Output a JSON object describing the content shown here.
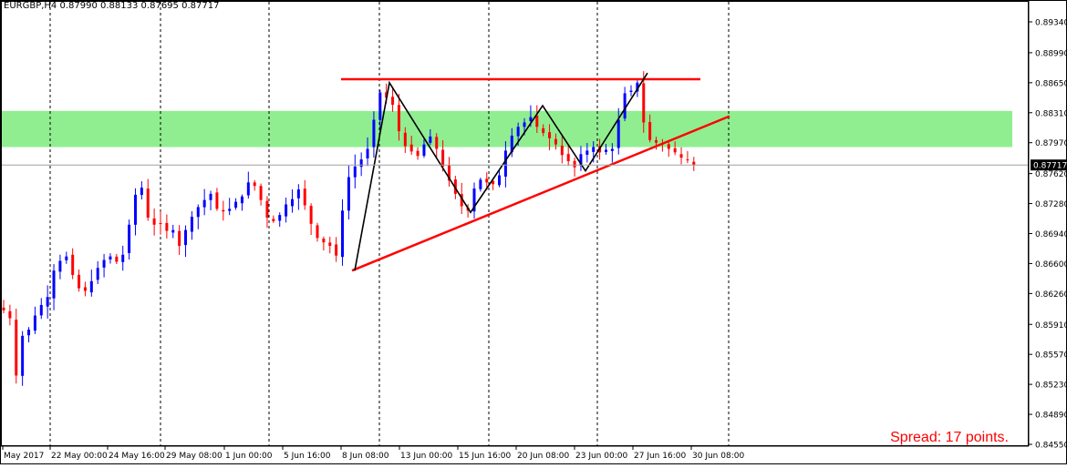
{
  "header": {
    "symbol": "EURGBP,H4",
    "ohlc": "0.87990 0.88133 0.87695 0.87717"
  },
  "spread_label": "Spread: 17 points.",
  "colors": {
    "bull": "#0000ff",
    "bear": "#ff0000",
    "zone": "#90ee90",
    "trendline": "#ff0000",
    "pattern": "#000000",
    "grid": "#000000",
    "price_tag_bg": "#000000"
  },
  "chart_data": {
    "type": "candlestick",
    "symbol": "EURGBP",
    "timeframe": "H4",
    "ylim": [
      0.8444,
      0.8952
    ],
    "y_ticks": [
      "0.89340",
      "0.88990",
      "0.88650",
      "0.88310",
      "0.87970",
      "0.87620",
      "0.87280",
      "0.86940",
      "0.86600",
      "0.86260",
      "0.85910",
      "0.85570",
      "0.85230",
      "0.84890",
      "0.84550"
    ],
    "x_ticks": [
      "May 2017",
      "22 May 00:00",
      "24 May 16:00",
      "29 May 08:00",
      "1 Jun 00:00",
      "5 Jun 16:00",
      "8 Jun 08:00",
      "13 Jun 00:00",
      "15 Jun 16:00",
      "20 Jun 08:00",
      "23 Jun 00:00",
      "27 Jun 16:00",
      "30 Jun 08:00"
    ],
    "current_price": "0.87717",
    "support_resistance_zone": [
      0.8792,
      0.8833
    ],
    "resistance_line": {
      "price": 0.8869
    },
    "trendline": {
      "from": 0.8652,
      "to": 0.8827
    },
    "pattern_points": [
      0.8652,
      0.8865,
      0.8718,
      0.8839,
      0.8765,
      0.8876
    ],
    "close_path": [
      0.8607,
      0.8598,
      0.8533,
      0.8578,
      0.8585,
      0.8601,
      0.8613,
      0.8622,
      0.8652,
      0.8663,
      0.8668,
      0.8647,
      0.8632,
      0.8629,
      0.864,
      0.8655,
      0.8664,
      0.8668,
      0.8662,
      0.867,
      0.8704,
      0.8738,
      0.8746,
      0.8712,
      0.8704,
      0.8705,
      0.8697,
      0.8698,
      0.868,
      0.8698,
      0.8713,
      0.8724,
      0.8732,
      0.8739,
      0.8722,
      0.8719,
      0.8722,
      0.873,
      0.8736,
      0.8752,
      0.8748,
      0.8732,
      0.8712,
      0.8708,
      0.8715,
      0.8727,
      0.8733,
      0.8744,
      0.8726,
      0.8705,
      0.8689,
      0.8684,
      0.868,
      0.8669,
      0.872,
      0.8758,
      0.877,
      0.8778,
      0.879,
      0.8823,
      0.8854,
      0.8848,
      0.884,
      0.881,
      0.8793,
      0.8787,
      0.8782,
      0.8795,
      0.8804,
      0.879,
      0.877,
      0.8754,
      0.8739,
      0.8725,
      0.872,
      0.8745,
      0.8755,
      0.8752,
      0.875,
      0.876,
      0.8788,
      0.8805,
      0.8815,
      0.882,
      0.8826,
      0.8815,
      0.8808,
      0.8802,
      0.8795,
      0.8783,
      0.8776,
      0.8769,
      0.8784,
      0.8788,
      0.8792,
      0.8786,
      0.8789,
      0.879,
      0.8823,
      0.8853,
      0.8856,
      0.8865,
      0.882,
      0.88,
      0.8797,
      0.8795,
      0.879,
      0.8786,
      0.878,
      0.8777,
      0.8772
    ]
  }
}
